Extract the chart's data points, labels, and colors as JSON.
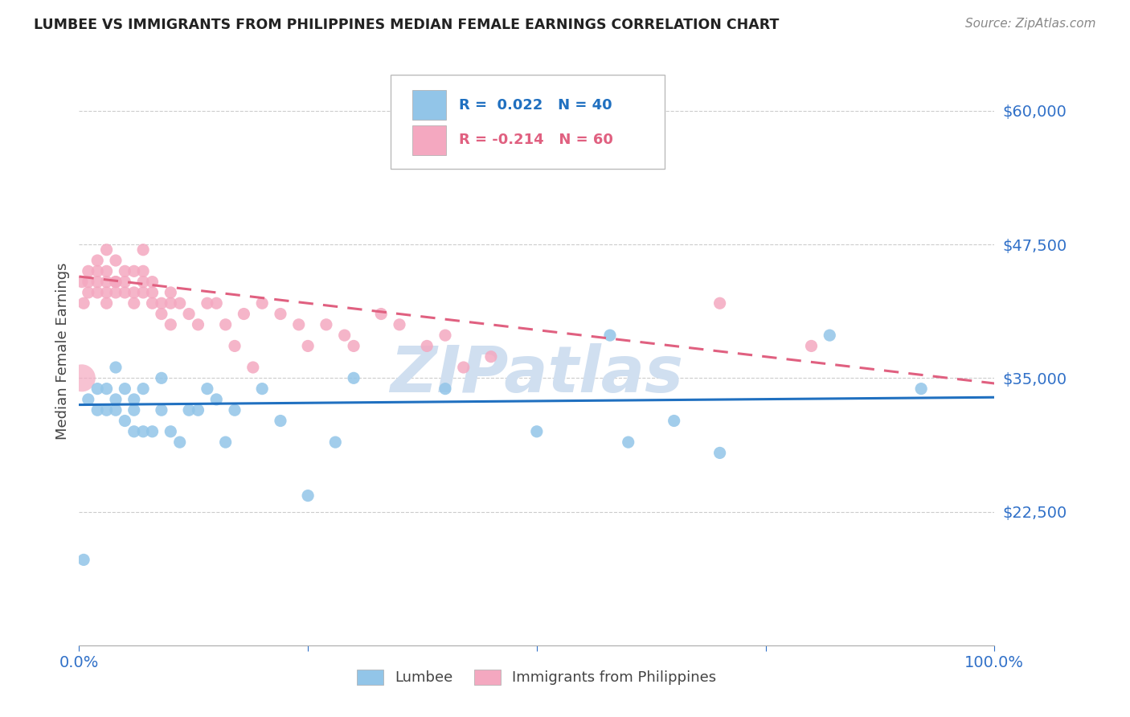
{
  "title": "LUMBEE VS IMMIGRANTS FROM PHILIPPINES MEDIAN FEMALE EARNINGS CORRELATION CHART",
  "source": "Source: ZipAtlas.com",
  "ylabel": "Median Female Earnings",
  "xlim": [
    0.0,
    1.0
  ],
  "ylim": [
    10000,
    65000
  ],
  "lumbee_R": 0.022,
  "lumbee_N": 40,
  "phil_R": -0.214,
  "phil_N": 60,
  "lumbee_color": "#92c5e8",
  "phil_color": "#f4a8c0",
  "lumbee_line_color": "#2070c0",
  "phil_line_color": "#e06080",
  "watermark_color": "#d0dff0",
  "title_color": "#222222",
  "tick_color": "#3070c8",
  "lumbee_x": [
    0.005,
    0.01,
    0.02,
    0.02,
    0.03,
    0.03,
    0.04,
    0.04,
    0.04,
    0.05,
    0.05,
    0.06,
    0.06,
    0.06,
    0.07,
    0.07,
    0.08,
    0.09,
    0.09,
    0.1,
    0.11,
    0.12,
    0.13,
    0.14,
    0.15,
    0.16,
    0.17,
    0.2,
    0.22,
    0.25,
    0.28,
    0.3,
    0.4,
    0.5,
    0.58,
    0.6,
    0.65,
    0.7,
    0.82,
    0.92
  ],
  "lumbee_y": [
    18000,
    33000,
    34000,
    32000,
    34000,
    32000,
    36000,
    33000,
    32000,
    34000,
    31000,
    30000,
    33000,
    32000,
    30000,
    34000,
    30000,
    35000,
    32000,
    30000,
    29000,
    32000,
    32000,
    34000,
    33000,
    29000,
    32000,
    34000,
    31000,
    24000,
    29000,
    35000,
    34000,
    30000,
    39000,
    29000,
    31000,
    28000,
    39000,
    34000
  ],
  "phil_x": [
    0.003,
    0.005,
    0.01,
    0.01,
    0.01,
    0.02,
    0.02,
    0.02,
    0.02,
    0.03,
    0.03,
    0.03,
    0.03,
    0.03,
    0.04,
    0.04,
    0.04,
    0.04,
    0.05,
    0.05,
    0.05,
    0.06,
    0.06,
    0.06,
    0.07,
    0.07,
    0.07,
    0.07,
    0.08,
    0.08,
    0.08,
    0.09,
    0.09,
    0.1,
    0.1,
    0.1,
    0.11,
    0.12,
    0.13,
    0.14,
    0.15,
    0.16,
    0.17,
    0.18,
    0.19,
    0.2,
    0.22,
    0.24,
    0.25,
    0.27,
    0.29,
    0.3,
    0.33,
    0.35,
    0.38,
    0.4,
    0.42,
    0.45,
    0.7,
    0.8
  ],
  "phil_y": [
    44000,
    42000,
    45000,
    43000,
    44000,
    46000,
    43000,
    45000,
    44000,
    47000,
    44000,
    45000,
    43000,
    42000,
    44000,
    46000,
    44000,
    43000,
    45000,
    43000,
    44000,
    45000,
    43000,
    42000,
    47000,
    45000,
    43000,
    44000,
    43000,
    42000,
    44000,
    42000,
    41000,
    43000,
    42000,
    40000,
    42000,
    41000,
    40000,
    42000,
    42000,
    40000,
    38000,
    41000,
    36000,
    42000,
    41000,
    40000,
    38000,
    40000,
    39000,
    38000,
    41000,
    40000,
    38000,
    39000,
    36000,
    37000,
    42000,
    38000
  ],
  "phil_large_x": [
    0.002
  ],
  "phil_large_y": [
    35000
  ],
  "ytick_vals": [
    22500,
    35000,
    47500,
    60000
  ],
  "ytick_labels": [
    "$22,500",
    "$35,000",
    "$47,500",
    "$60,000"
  ],
  "grid_vals": [
    22500,
    35000,
    47500,
    60000
  ],
  "lumbee_trend_y0": 32500,
  "lumbee_trend_y1": 33200,
  "phil_trend_y0": 44500,
  "phil_trend_y1": 34500
}
